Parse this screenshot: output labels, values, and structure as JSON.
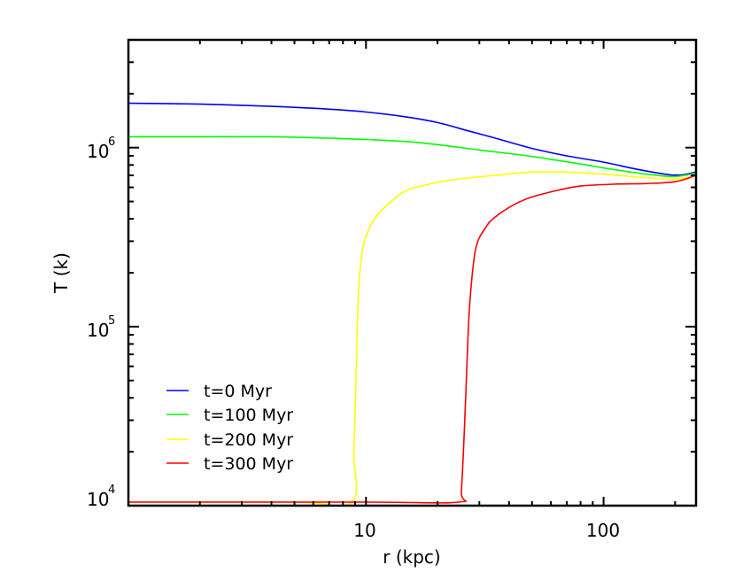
{
  "chart_data": {
    "type": "line",
    "title": "",
    "xlabel": "r (kpc)",
    "ylabel": "T (k)",
    "xscale": "log",
    "yscale": "log",
    "xlim": [
      1.0,
      245
    ],
    "ylim": [
      10000,
      4000000
    ],
    "grid": false,
    "legend_position": "lower left",
    "x_tick_labels": [
      "10",
      "100"
    ],
    "x_tick_values": [
      10,
      100
    ],
    "y_tick_labels": [
      {
        "base": "10",
        "exp": "4"
      },
      {
        "base": "10",
        "exp": "5"
      },
      {
        "base": "10",
        "exp": "6"
      }
    ],
    "y_tick_values": [
      10000,
      100000,
      1000000
    ],
    "series": [
      {
        "name": "t=0 Myr",
        "color": "#0000ff",
        "x": [
          1.0,
          2,
          4,
          7,
          10,
          15,
          20,
          27,
          35,
          50,
          70,
          100,
          130,
          160,
          190,
          215,
          245
        ],
        "y": [
          1770000,
          1750000,
          1700000,
          1640000,
          1580000,
          1480000,
          1380000,
          1240000,
          1130000,
          990000,
          900000,
          830000,
          770000,
          730000,
          705000,
          705000,
          730000
        ]
      },
      {
        "name": "t=100 Myr",
        "color": "#00ff00",
        "x": [
          1.0,
          2,
          4,
          7,
          10,
          15,
          20,
          30,
          45,
          60,
          80,
          100,
          130,
          160,
          200,
          245
        ],
        "y": [
          1150000,
          1150000,
          1150000,
          1130000,
          1110000,
          1080000,
          1040000,
          970000,
          910000,
          860000,
          810000,
          770000,
          730000,
          705000,
          690000,
          720000
        ]
      },
      {
        "name": "t=200 Myr",
        "color": "#ffff00",
        "x": [
          1.0,
          5,
          8.7,
          8.9,
          9.1,
          9.3,
          9.6,
          10,
          11,
          13,
          15,
          20,
          25,
          35,
          50,
          70,
          100,
          150,
          200,
          245
        ],
        "y": [
          9500,
          9500,
          9500,
          20000,
          60000,
          157000,
          250000,
          320000,
          410000,
          510000,
          580000,
          640000,
          670000,
          700000,
          730000,
          730000,
          710000,
          680000,
          665000,
          700000
        ]
      },
      {
        "name": "t=300 Myr",
        "color": "#ff0000",
        "x": [
          1.0,
          10,
          24.5,
          25.2,
          26,
          26.8,
          27.5,
          29,
          32,
          35,
          42,
          50,
          65,
          80,
          110,
          150,
          200,
          245
        ],
        "y": [
          9500,
          9500,
          9500,
          12000,
          28000,
          80000,
          150000,
          275000,
          360000,
          410000,
          480000,
          530000,
          580000,
          610000,
          625000,
          630000,
          645000,
          700000
        ]
      }
    ]
  },
  "legend": {
    "items": [
      {
        "label": "t=0 Myr",
        "color": "#0000ff"
      },
      {
        "label": "t=100 Myr",
        "color": "#00ff00"
      },
      {
        "label": "t=200 Myr",
        "color": "#ffff00"
      },
      {
        "label": "t=300 Myr",
        "color": "#ff0000"
      }
    ]
  },
  "axes": {
    "xlabel": "r (kpc)",
    "ylabel": "T (k)",
    "x_ticks": [
      {
        "label": "10"
      },
      {
        "label": "100"
      }
    ],
    "y_ticks": [
      {
        "base": "10",
        "exp": "4"
      },
      {
        "base": "10",
        "exp": "5"
      },
      {
        "base": "10",
        "exp": "6"
      }
    ]
  }
}
